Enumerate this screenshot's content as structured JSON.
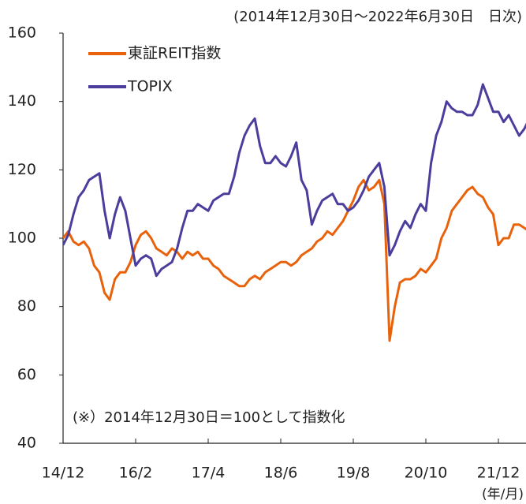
{
  "chart_data": {
    "type": "line",
    "subtitle": "(2014年12月30日～2022年6月30日　日次)",
    "annotation": "(※）2014年12月30日＝100として指数化",
    "x_unit_label": "(年/月)",
    "categories": [
      "14/12",
      null,
      null,
      null,
      null,
      null,
      null,
      null,
      null,
      null,
      null,
      null,
      null,
      null,
      "16/2",
      null,
      null,
      null,
      null,
      null,
      null,
      null,
      null,
      null,
      null,
      null,
      null,
      null,
      "17/4",
      null,
      null,
      null,
      null,
      null,
      null,
      null,
      null,
      null,
      null,
      null,
      null,
      null,
      "18/6",
      null,
      null,
      null,
      null,
      null,
      null,
      null,
      null,
      null,
      null,
      null,
      null,
      null,
      "19/8",
      null,
      null,
      null,
      null,
      null,
      null,
      null,
      null,
      null,
      null,
      null,
      null,
      null,
      "20/10",
      null,
      null,
      null,
      null,
      null,
      null,
      null,
      null,
      null,
      null,
      null,
      null,
      null,
      "21/12",
      null,
      null,
      null,
      null,
      null,
      null
    ],
    "series": [
      {
        "name": "東証REIT指数",
        "color": "#e8620c",
        "values": [
          100,
          102,
          99,
          98,
          99,
          97,
          92,
          90,
          84,
          82,
          88,
          90,
          90,
          93,
          98,
          101,
          102,
          100,
          97,
          96,
          95,
          97,
          96,
          94,
          96,
          95,
          96,
          94,
          94,
          92,
          91,
          89,
          88,
          87,
          86,
          86,
          88,
          89,
          88,
          90,
          91,
          92,
          93,
          93,
          92,
          93,
          95,
          96,
          97,
          99,
          100,
          102,
          101,
          103,
          105,
          108,
          111,
          115,
          117,
          114,
          115,
          117,
          110,
          70,
          80,
          87,
          88,
          88,
          89,
          91,
          90,
          92,
          94,
          100,
          103,
          108,
          110,
          112,
          114,
          115,
          113,
          112,
          109,
          107,
          98,
          100,
          100,
          104,
          104,
          103,
          102
        ]
      },
      {
        "name": "TOPIX",
        "color": "#4b3d9c",
        "values": [
          98,
          101,
          107,
          112,
          114,
          117,
          118,
          119,
          108,
          100,
          107,
          112,
          108,
          100,
          92,
          94,
          95,
          94,
          89,
          91,
          92,
          93,
          97,
          103,
          108,
          108,
          110,
          109,
          108,
          111,
          112,
          113,
          113,
          118,
          125,
          130,
          133,
          135,
          127,
          122,
          122,
          124,
          122,
          121,
          124,
          128,
          117,
          114,
          104,
          108,
          111,
          112,
          113,
          110,
          110,
          108,
          109,
          111,
          114,
          118,
          120,
          122,
          115,
          95,
          98,
          102,
          105,
          103,
          107,
          110,
          108,
          122,
          130,
          134,
          140,
          138,
          137,
          137,
          136,
          136,
          139,
          145,
          141,
          137,
          137,
          134,
          136,
          133,
          130,
          132,
          135
        ]
      }
    ],
    "ylim": [
      40,
      160
    ],
    "yticks": [
      40,
      60,
      80,
      100,
      120,
      140,
      160
    ],
    "grid": false,
    "legend": "upper left"
  }
}
